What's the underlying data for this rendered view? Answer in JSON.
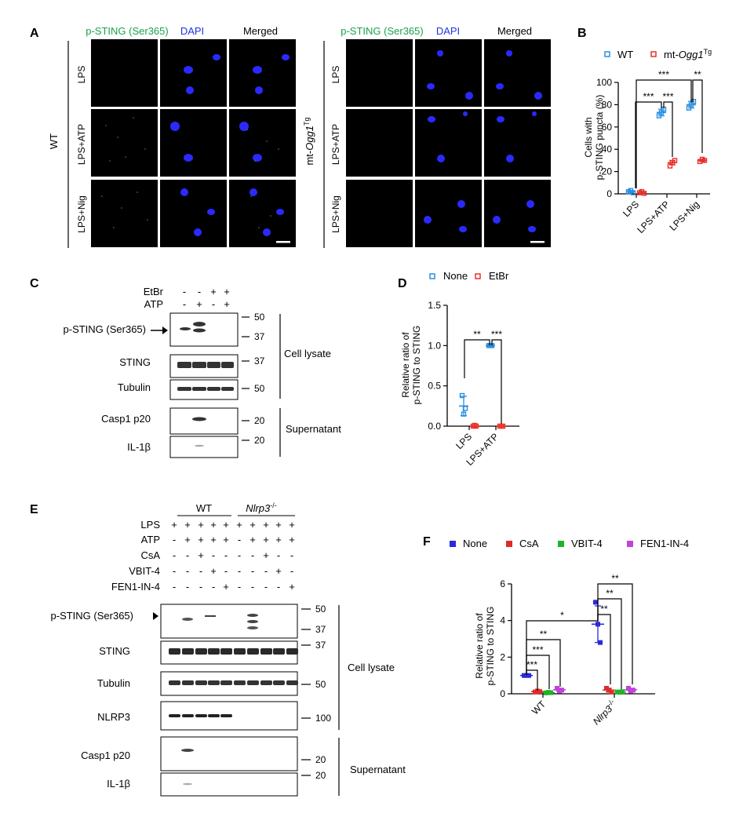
{
  "panels": {
    "a": "A",
    "b": "B",
    "c": "C",
    "d": "D",
    "e": "E",
    "f": "F"
  },
  "panel_a": {
    "headers": [
      "p-STING (Ser365)",
      "DAPI",
      "Merged"
    ],
    "colors": {
      "pSTING": "#1aa34a",
      "DAPI": "#2233dd",
      "nucleus": "#2a2aff",
      "grid_bg": "#000000"
    },
    "left_group": "WT",
    "right_group_prefix": "mt-",
    "right_group_gene": "Ogg1",
    "right_group_sup": "Tg",
    "rows": [
      "LPS",
      "LPS+ATP",
      "LPS+Nig"
    ]
  },
  "panel_c": {
    "treatments": [
      {
        "label": "EtBr",
        "values": [
          "-",
          "-",
          "+",
          "+"
        ]
      },
      {
        "label": "ATP",
        "values": [
          "-",
          "+",
          "-",
          "+"
        ]
      }
    ],
    "blots": [
      {
        "label": "p-STING (Ser365)",
        "markers": [
          "50",
          "37"
        ]
      },
      {
        "label": "STING",
        "markers": [
          "37"
        ]
      },
      {
        "label": "Tubulin",
        "markers": [
          "50"
        ]
      },
      {
        "label": "Casp1 p20",
        "markers": [
          "20"
        ]
      },
      {
        "label": "IL-1β",
        "markers": [
          "20"
        ]
      }
    ],
    "groups": [
      "Cell lysate",
      "Supernatant"
    ]
  },
  "panel_e": {
    "genotypes": [
      {
        "label": "WT",
        "italic": false
      },
      {
        "label": "Nlrp3",
        "sup": "-/-",
        "italic": true
      }
    ],
    "treatments": [
      {
        "label": "LPS",
        "values": [
          "+",
          "+",
          "+",
          "+",
          "+",
          "+",
          "+",
          "+",
          "+",
          "+"
        ]
      },
      {
        "label": "ATP",
        "values": [
          "-",
          "+",
          "+",
          "+",
          "+",
          "-",
          "+",
          "+",
          "+",
          "+"
        ]
      },
      {
        "label": "CsA",
        "values": [
          "-",
          "-",
          "+",
          "-",
          "-",
          "-",
          "-",
          "+",
          "-",
          "-"
        ]
      },
      {
        "label": "VBIT-4",
        "values": [
          "-",
          "-",
          "-",
          "+",
          "-",
          "-",
          "-",
          "-",
          "+",
          "-"
        ]
      },
      {
        "label": "FEN1-IN-4",
        "values": [
          "-",
          "-",
          "-",
          "-",
          "+",
          "-",
          "-",
          "-",
          "-",
          "+"
        ]
      }
    ],
    "blots": [
      {
        "label": "p-STING (Ser365)",
        "markers": [
          "50",
          "37"
        ]
      },
      {
        "label": "STING",
        "markers": [
          "37"
        ]
      },
      {
        "label": "Tubulin",
        "markers": [
          "50"
        ]
      },
      {
        "label": "NLRP3",
        "markers": [
          "100"
        ]
      },
      {
        "label": "Casp1 p20",
        "markers": [
          "20"
        ]
      },
      {
        "label": "IL-1β",
        "markers": [
          "20"
        ]
      }
    ],
    "groups": [
      "Cell lysate",
      "Supernatant"
    ]
  },
  "chart_data": [
    {
      "id": "B",
      "type": "scatter",
      "ylabel_lines": [
        "Cells with",
        "p-STING puncta (%)"
      ],
      "ylim": [
        0,
        100
      ],
      "yticks": [
        "0",
        "20",
        "40",
        "60",
        "80",
        "100"
      ],
      "categories": [
        "LPS",
        "LPS+ATP",
        "LPS+Nig"
      ],
      "series": [
        {
          "name": "WT",
          "color": "#2a8fe0",
          "points": [
            [
              2,
              3,
              1
            ],
            [
              70,
              73,
              76
            ],
            [
              77,
              80,
              83
            ]
          ],
          "means": [
            2,
            73,
            80
          ],
          "sd": [
            1,
            3,
            3
          ]
        },
        {
          "name_prefix": "mt-",
          "name_gene": "Ogg1",
          "name_sup": "Tg",
          "color": "#e8302a",
          "points": [
            [
              1,
              2,
              0.5
            ],
            [
              25,
              28,
              30
            ],
            [
              29,
              31,
              30
            ]
          ],
          "means": [
            1,
            28,
            30
          ],
          "sd": [
            1,
            2,
            1
          ]
        }
      ],
      "annotations": [
        "***",
        "***",
        "***",
        "**"
      ]
    },
    {
      "id": "D",
      "type": "scatter",
      "ylabel_lines": [
        "Relative ratio of",
        "p-STING to STING"
      ],
      "ylim": [
        0,
        1.5
      ],
      "yticks": [
        "0.0",
        "0.5",
        "1.0",
        "1.5"
      ],
      "categories": [
        "LPS",
        "LPS+ATP"
      ],
      "series": [
        {
          "name": "None",
          "color": "#2a8fe0",
          "points": [
            [
              0.38,
              0.15,
              0.22
            ],
            [
              1.0,
              1.0,
              1.0
            ]
          ],
          "means": [
            0.25,
            1.0
          ],
          "sd": [
            0.12,
            0.01
          ]
        },
        {
          "name": "EtBr",
          "color": "#e8302a",
          "points": [
            [
              0.0,
              0.01,
              0.0
            ],
            [
              0.0,
              0.0,
              0.0
            ]
          ],
          "means": [
            0.0,
            0.0
          ],
          "sd": [
            0.005,
            0.005
          ]
        }
      ],
      "annotations": [
        "**",
        "***"
      ]
    },
    {
      "id": "F",
      "type": "scatter",
      "ylabel_lines": [
        "Relative ratio of",
        "p-STING to STING"
      ],
      "ylim": [
        0,
        6
      ],
      "yticks": [
        "0",
        "2",
        "4",
        "6"
      ],
      "categories": [
        "WT",
        "Nlrp3-/-"
      ],
      "category_labels": [
        {
          "text": "WT"
        },
        {
          "text": "Nlrp3",
          "sup": "-/-",
          "italic": true
        }
      ],
      "series": [
        {
          "name": "None",
          "color": "#2a2ad8",
          "points": [
            [
              1.0,
              1.0,
              1.0
            ],
            [
              5.0,
              3.8,
              2.8
            ]
          ],
          "means": [
            1.0,
            3.8
          ],
          "sd": [
            0.02,
            1.0
          ]
        },
        {
          "name": "CsA",
          "color": "#e02a2a",
          "points": [
            [
              0.1,
              0.15,
              0.12
            ],
            [
              0.3,
              0.2,
              0.1
            ]
          ],
          "means": [
            0.12,
            0.2
          ],
          "sd": [
            0.03,
            0.1
          ]
        },
        {
          "name": "VBIT-4",
          "color": "#1fb32a",
          "points": [
            [
              0.05,
              0.08,
              0.06
            ],
            [
              0.1,
              0.08,
              0.12
            ]
          ],
          "means": [
            0.06,
            0.1
          ],
          "sd": [
            0.02,
            0.02
          ]
        },
        {
          "name": "FEN1-IN-4",
          "color": "#c042d8",
          "points": [
            [
              0.3,
              0.15,
              0.2
            ],
            [
              0.3,
              0.15,
              0.2
            ]
          ],
          "means": [
            0.22,
            0.22
          ],
          "sd": [
            0.08,
            0.08
          ]
        }
      ],
      "annotations": [
        "***",
        "***",
        "**",
        "*",
        "**",
        "**",
        "**"
      ]
    }
  ]
}
